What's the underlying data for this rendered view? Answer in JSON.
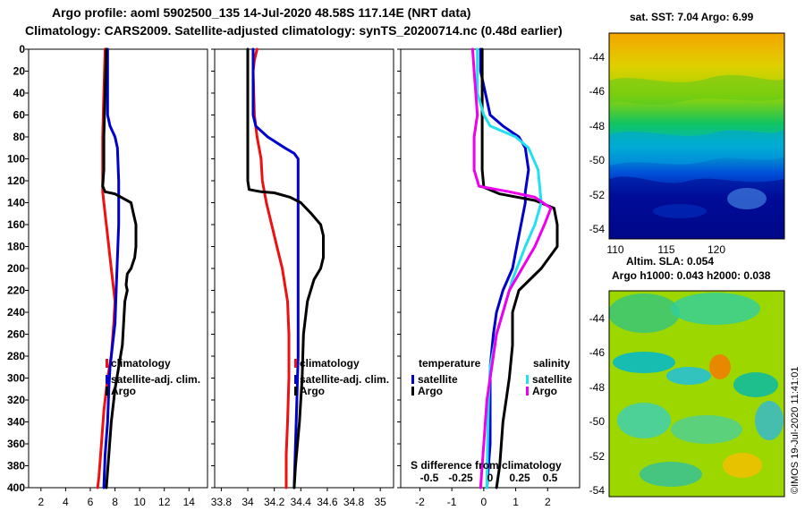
{
  "header": {
    "line1": "Argo profile: aoml 5902500_135 14-Jul-2020 48.58S 117.14E (NRT data)",
    "line2": "Climatology: CARS2009. Satellite-adjusted climatology: synTS_20200714.nc (0.48d earlier)"
  },
  "colors": {
    "argo": "#000000",
    "satellite": "#0000cc",
    "climatology": "#ee1111",
    "sat_salinity": "#22e0f0",
    "argo_salinity": "#ee00ee"
  },
  "legends": {
    "temp": [
      "climatology",
      "satellite-adj. clim.",
      "Argo"
    ],
    "sal": [
      "climatology",
      "satellite-adj. clim.",
      "Argo"
    ],
    "diff_temp_head": "temperature",
    "diff_sal_head": "salinity",
    "diff_items": [
      "satellite",
      "Argo"
    ],
    "diff_xlabel": "S difference from climatology",
    "diff_xticks": [
      "-0.5",
      "-0.25",
      "0",
      "0.25",
      "0.5"
    ]
  },
  "chart_data": [
    {
      "type": "line",
      "id": "temperature",
      "xlim": [
        1,
        15.5
      ],
      "ylim": [
        400,
        0
      ],
      "xticks": [
        2,
        4,
        6,
        8,
        10,
        12,
        14
      ],
      "yticks": [
        0,
        20,
        40,
        60,
        80,
        100,
        120,
        140,
        160,
        180,
        200,
        220,
        240,
        260,
        280,
        300,
        320,
        340,
        360,
        380,
        400
      ],
      "series": [
        {
          "name": "climatology",
          "color": "#ee1111",
          "points": [
            [
              7.2,
              0
            ],
            [
              7.1,
              40
            ],
            [
              7.0,
              80
            ],
            [
              7.0,
              110
            ],
            [
              7.0,
              130
            ],
            [
              7.2,
              150
            ],
            [
              7.4,
              170
            ],
            [
              7.6,
              190
            ],
            [
              7.8,
              210
            ],
            [
              8.0,
              230
            ],
            [
              7.9,
              250
            ],
            [
              7.7,
              280
            ],
            [
              7.4,
              300
            ],
            [
              7.1,
              330
            ],
            [
              6.9,
              360
            ],
            [
              6.7,
              390
            ],
            [
              6.6,
              400
            ]
          ]
        },
        {
          "name": "satellite-adj. clim.",
          "color": "#0000cc",
          "points": [
            [
              7.4,
              0
            ],
            [
              7.4,
              60
            ],
            [
              7.6,
              70
            ],
            [
              8.0,
              80
            ],
            [
              8.2,
              90
            ],
            [
              8.3,
              120
            ],
            [
              8.3,
              160
            ],
            [
              8.2,
              190
            ],
            [
              8.1,
              220
            ],
            [
              8.0,
              250
            ],
            [
              7.8,
              270
            ],
            [
              7.6,
              290
            ],
            [
              7.5,
              310
            ],
            [
              7.4,
              340
            ],
            [
              7.2,
              370
            ],
            [
              7.1,
              400
            ]
          ]
        },
        {
          "name": "Argo",
          "color": "#000000",
          "points": [
            [
              7.3,
              0
            ],
            [
              7.2,
              40
            ],
            [
              7.1,
              80
            ],
            [
              7.1,
              110
            ],
            [
              7.0,
              125
            ],
            [
              7.2,
              130
            ],
            [
              8.0,
              132
            ],
            [
              9.3,
              140
            ],
            [
              9.5,
              150
            ],
            [
              9.7,
              160
            ],
            [
              9.7,
              180
            ],
            [
              9.6,
              190
            ],
            [
              9.3,
              200
            ],
            [
              9.0,
              205
            ],
            [
              8.9,
              215
            ],
            [
              9.0,
              220
            ],
            [
              8.8,
              230
            ],
            [
              8.7,
              250
            ],
            [
              8.6,
              270
            ],
            [
              8.3,
              290
            ],
            [
              8.0,
              310
            ],
            [
              7.7,
              340
            ],
            [
              7.5,
              370
            ],
            [
              7.3,
              400
            ]
          ]
        }
      ]
    },
    {
      "type": "line",
      "id": "salinity",
      "xlim": [
        33.75,
        35.1
      ],
      "ylim": [
        400,
        0
      ],
      "xticks": [
        33.8,
        34.0,
        34.2,
        34.4,
        34.6,
        34.8,
        35.0
      ],
      "xticklabels": [
        "33.8",
        "34",
        "34.2",
        "34.4",
        "34.6",
        "34.8",
        "35"
      ],
      "series": [
        {
          "name": "climatology",
          "color": "#ee1111",
          "points": [
            [
              34.07,
              0
            ],
            [
              34.05,
              10
            ],
            [
              34.04,
              20
            ],
            [
              34.05,
              60
            ],
            [
              34.07,
              80
            ],
            [
              34.1,
              100
            ],
            [
              34.11,
              120
            ],
            [
              34.14,
              140
            ],
            [
              34.18,
              160
            ],
            [
              34.22,
              180
            ],
            [
              34.26,
              200
            ],
            [
              34.3,
              230
            ],
            [
              34.31,
              260
            ],
            [
              34.31,
              300
            ],
            [
              34.3,
              340
            ],
            [
              34.29,
              370
            ],
            [
              34.29,
              400
            ]
          ]
        },
        {
          "name": "satellite-adj. clim.",
          "color": "#0000cc",
          "points": [
            [
              34.04,
              0
            ],
            [
              34.04,
              60
            ],
            [
              34.06,
              70
            ],
            [
              34.15,
              80
            ],
            [
              34.28,
              90
            ],
            [
              34.35,
              95
            ],
            [
              34.38,
              100
            ],
            [
              34.38,
              140
            ],
            [
              34.38,
              200
            ],
            [
              34.38,
              280
            ],
            [
              34.37,
              320
            ],
            [
              34.36,
              360
            ],
            [
              34.35,
              400
            ]
          ]
        },
        {
          "name": "Argo",
          "color": "#000000",
          "points": [
            [
              34.0,
              0
            ],
            [
              34.0,
              40
            ],
            [
              34.0,
              80
            ],
            [
              34.0,
              120
            ],
            [
              34.01,
              128
            ],
            [
              34.1,
              130
            ],
            [
              34.2,
              131
            ],
            [
              34.32,
              135
            ],
            [
              34.4,
              140
            ],
            [
              34.48,
              150
            ],
            [
              34.55,
              160
            ],
            [
              34.57,
              170
            ],
            [
              34.57,
              190
            ],
            [
              34.55,
              200
            ],
            [
              34.5,
              210
            ],
            [
              34.45,
              230
            ],
            [
              34.42,
              260
            ],
            [
              34.41,
              300
            ],
            [
              34.39,
              340
            ],
            [
              34.36,
              380
            ],
            [
              34.35,
              400
            ]
          ]
        }
      ]
    },
    {
      "type": "line",
      "id": "difference",
      "xlim": [
        -2.6,
        3.0
      ],
      "ylim": [
        400,
        0
      ],
      "xticks": [
        -2,
        -1,
        0,
        1,
        2
      ],
      "series": [
        {
          "name": "temperature satellite",
          "color": "#0000cc",
          "points": [
            [
              -0.1,
              0
            ],
            [
              -0.1,
              20
            ],
            [
              0.2,
              60
            ],
            [
              0.6,
              70
            ],
            [
              1.1,
              80
            ],
            [
              1.3,
              90
            ],
            [
              1.4,
              110
            ],
            [
              1.3,
              130
            ],
            [
              1.3,
              140
            ],
            [
              1.1,
              170
            ],
            [
              0.9,
              200
            ],
            [
              0.6,
              220
            ],
            [
              0.4,
              240
            ],
            [
              0.3,
              260
            ],
            [
              0.2,
              290
            ],
            [
              0.2,
              320
            ],
            [
              0.2,
              360
            ],
            [
              0.1,
              400
            ]
          ]
        },
        {
          "name": "temperature Argo",
          "color": "#000000",
          "points": [
            [
              -0.05,
              0
            ],
            [
              -0.05,
              40
            ],
            [
              -0.05,
              80
            ],
            [
              -0.05,
              110
            ],
            [
              0.0,
              126
            ],
            [
              0.5,
              132
            ],
            [
              1.6,
              138
            ],
            [
              2.2,
              145
            ],
            [
              2.3,
              160
            ],
            [
              2.3,
              180
            ],
            [
              1.8,
              200
            ],
            [
              1.1,
              220
            ],
            [
              0.9,
              240
            ],
            [
              0.9,
              270
            ],
            [
              0.8,
              300
            ],
            [
              0.7,
              320
            ],
            [
              0.6,
              340
            ],
            [
              0.5,
              380
            ],
            [
              0.4,
              400
            ]
          ]
        },
        {
          "name": "salinity satellite",
          "color": "#22e0f0",
          "points": [
            [
              -0.2,
              0
            ],
            [
              -0.2,
              40
            ],
            [
              0.0,
              60
            ],
            [
              0.2,
              70
            ],
            [
              1.0,
              80
            ],
            [
              1.4,
              90
            ],
            [
              1.7,
              110
            ],
            [
              1.8,
              140
            ],
            [
              1.6,
              160
            ],
            [
              1.3,
              180
            ],
            [
              0.9,
              210
            ],
            [
              0.7,
              230
            ],
            [
              0.4,
              260
            ],
            [
              0.2,
              290
            ],
            [
              0.15,
              320
            ],
            [
              0.12,
              360
            ],
            [
              0.1,
              400
            ]
          ]
        },
        {
          "name": "salinity Argo",
          "color": "#ee00ee",
          "points": [
            [
              -0.35,
              0
            ],
            [
              -0.3,
              20
            ],
            [
              -0.2,
              60
            ],
            [
              -0.3,
              80
            ],
            [
              -0.3,
              110
            ],
            [
              -0.15,
              125
            ],
            [
              0.8,
              130
            ],
            [
              1.6,
              135
            ],
            [
              2.1,
              145
            ],
            [
              1.9,
              160
            ],
            [
              1.6,
              180
            ],
            [
              1.2,
              200
            ],
            [
              0.8,
              220
            ],
            [
              0.6,
              240
            ],
            [
              0.4,
              260
            ],
            [
              0.3,
              280
            ],
            [
              0.2,
              300
            ],
            [
              0.1,
              320
            ],
            [
              0.05,
              340
            ],
            [
              0.0,
              360
            ],
            [
              -0.05,
              380
            ],
            [
              -0.1,
              400
            ]
          ]
        }
      ]
    }
  ],
  "maps": {
    "sst": {
      "title": "sat. SST: 7.04 Argo: 6.99",
      "xticks": [
        "110",
        "115",
        "120"
      ],
      "yticks": [
        "-44",
        "-46",
        "-48",
        "-50",
        "-52",
        "-54"
      ]
    },
    "sla": {
      "title_line1": "Altim. SLA: 0.054",
      "title_line2": "Argo h1000: 0.043 h2000: 0.038",
      "yticks": [
        "-44",
        "-46",
        "-48",
        "-50",
        "-52",
        "-54"
      ]
    }
  },
  "credit": "©IMOS 19-Jul-2020 11:41:01"
}
